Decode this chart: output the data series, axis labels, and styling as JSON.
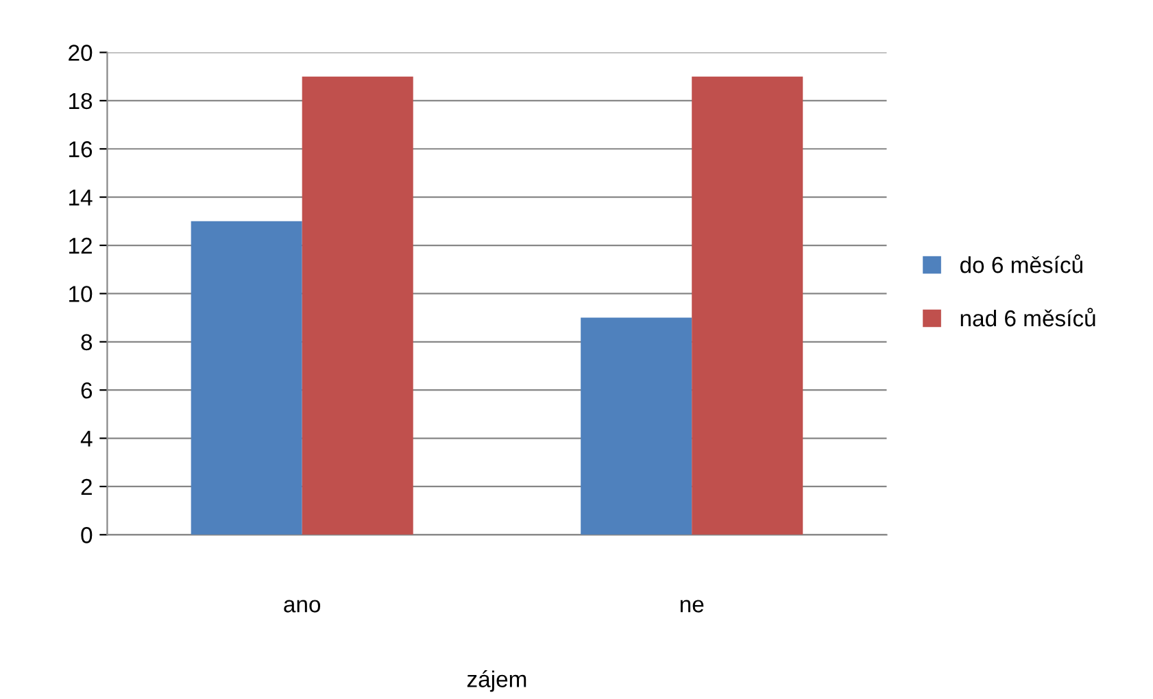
{
  "chart_data": {
    "type": "bar",
    "categories": [
      "ano",
      "ne"
    ],
    "xlabel": "zájem",
    "series": [
      {
        "name": "do 6 měsíců",
        "color": "#4f81bd",
        "values": [
          13,
          9
        ]
      },
      {
        "name": "nad 6 měsíců",
        "color": "#c0504d",
        "values": [
          19,
          19
        ]
      }
    ],
    "ylim": [
      0,
      20
    ],
    "yticks": [
      0,
      2,
      4,
      6,
      8,
      10,
      12,
      14,
      16,
      18,
      20
    ],
    "grid": "y",
    "legend": "right"
  }
}
